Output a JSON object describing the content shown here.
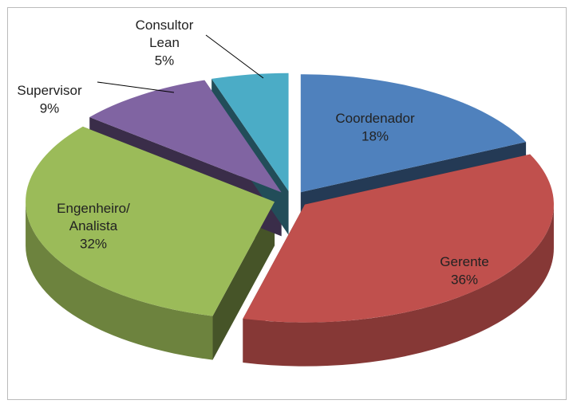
{
  "chart_data": {
    "type": "pie",
    "categories": [
      "Coordenador",
      "Gerente",
      "Engenheiro/ Analista",
      "Supervisor",
      "Consultor Lean"
    ],
    "values": [
      18,
      36,
      32,
      9,
      5
    ],
    "value_labels": [
      "18%",
      "36%",
      "32%",
      "9%",
      "5%"
    ],
    "colors": [
      "#4f81bd",
      "#c0504d",
      "#9bbb59",
      "#8064a2",
      "#4bacc6"
    ]
  }
}
